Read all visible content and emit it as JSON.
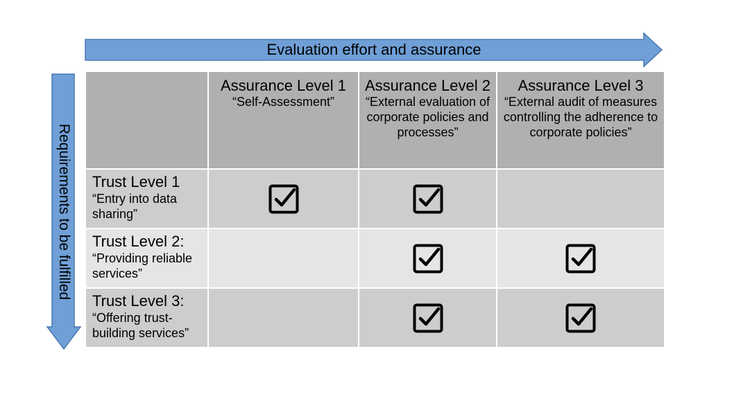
{
  "top_arrow": {
    "label": "Evaluation effort and assurance",
    "color": "#6f9fd6"
  },
  "side_arrow": {
    "label": "Requirements to be fulfilled",
    "color": "#6f9fd6"
  },
  "columns": [
    {
      "level": "Assurance Level 1",
      "desc": "“Self-Assessment”"
    },
    {
      "level": "Assurance Level 2",
      "desc": "“External evaluation of corporate policies and processes”"
    },
    {
      "level": "Assurance Level 3",
      "desc": "“External audit of measures controlling the adherence to corporate policies”"
    }
  ],
  "rows": [
    {
      "level": "Trust Level 1",
      "desc": "“Entry into data sharing”",
      "checks": [
        true,
        true,
        false
      ]
    },
    {
      "level": "Trust Level 2:",
      "desc": "“Providing reliable services”",
      "checks": [
        false,
        true,
        true
      ]
    },
    {
      "level": "Trust Level 3:",
      "desc": "“Offering trust-building services”",
      "checks": [
        false,
        true,
        true
      ]
    }
  ],
  "colors": {
    "header_bg": "#b0b0b0",
    "row_dark": "#cdcdcd",
    "row_light": "#e5e5e5"
  }
}
